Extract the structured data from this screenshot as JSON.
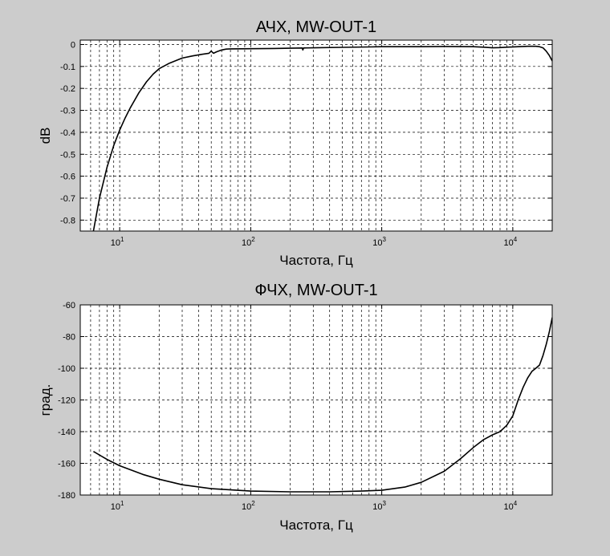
{
  "chart_data": [
    {
      "type": "line",
      "title": "АЧХ, MW-OUT-1",
      "xlabel": "Частота, Гц",
      "ylabel": "dB",
      "xscale": "log",
      "xlim": [
        5,
        20000
      ],
      "ylim": [
        -0.85,
        0.02
      ],
      "grid": true,
      "xticks": [
        {
          "value": 10,
          "base": "10",
          "exp": "1"
        },
        {
          "value": 100,
          "base": "10",
          "exp": "2"
        },
        {
          "value": 1000,
          "base": "10",
          "exp": "3"
        },
        {
          "value": 10000,
          "base": "10",
          "exp": "4"
        }
      ],
      "yticks": [
        {
          "value": 0,
          "label": "0"
        },
        {
          "value": -0.1,
          "label": "-0.1"
        },
        {
          "value": -0.2,
          "label": "-0.2"
        },
        {
          "value": -0.3,
          "label": "-0.3"
        },
        {
          "value": -0.4,
          "label": "-0.4"
        },
        {
          "value": -0.5,
          "label": "-0.5"
        },
        {
          "value": -0.6,
          "label": "-0.6"
        },
        {
          "value": -0.7,
          "label": "-0.7"
        },
        {
          "value": -0.8,
          "label": "-0.8"
        }
      ],
      "series": [
        {
          "points": [
            [
              6.3,
              -0.85
            ],
            [
              7,
              -0.7
            ],
            [
              8,
              -0.56
            ],
            [
              9,
              -0.46
            ],
            [
              10,
              -0.39
            ],
            [
              11,
              -0.335
            ],
            [
              12,
              -0.29
            ],
            [
              14,
              -0.22
            ],
            [
              16,
              -0.17
            ],
            [
              18,
              -0.135
            ],
            [
              20,
              -0.11
            ],
            [
              24,
              -0.085
            ],
            [
              30,
              -0.062
            ],
            [
              36,
              -0.052
            ],
            [
              42,
              -0.045
            ],
            [
              48,
              -0.04
            ],
            [
              50,
              -0.03
            ],
            [
              52,
              -0.04
            ],
            [
              55,
              -0.033
            ],
            [
              60,
              -0.025
            ],
            [
              65,
              -0.021
            ],
            [
              70,
              -0.02
            ],
            [
              100,
              -0.019
            ],
            [
              150,
              -0.018
            ],
            [
              200,
              -0.017
            ],
            [
              247,
              -0.016
            ],
            [
              250,
              -0.025
            ],
            [
              253,
              -0.016
            ],
            [
              300,
              -0.015
            ],
            [
              500,
              -0.013
            ],
            [
              800,
              -0.011
            ],
            [
              1000,
              -0.01
            ],
            [
              2000,
              -0.01
            ],
            [
              3000,
              -0.009
            ],
            [
              5000,
              -0.01
            ],
            [
              6000,
              -0.012
            ],
            [
              7000,
              -0.015
            ],
            [
              8000,
              -0.014
            ],
            [
              9000,
              -0.012
            ],
            [
              11000,
              -0.01
            ],
            [
              13000,
              -0.008
            ],
            [
              15000,
              -0.008
            ],
            [
              16000,
              -0.01
            ],
            [
              17000,
              -0.015
            ],
            [
              18000,
              -0.03
            ],
            [
              19000,
              -0.05
            ],
            [
              20000,
              -0.075
            ]
          ]
        }
      ]
    },
    {
      "type": "line",
      "title": "ФЧХ, MW-OUT-1",
      "xlabel": "Частота, Гц",
      "ylabel": "град.",
      "xscale": "log",
      "xlim": [
        5,
        20000
      ],
      "ylim": [
        -180,
        -60
      ],
      "grid": true,
      "xticks": [
        {
          "value": 10,
          "base": "10",
          "exp": "1"
        },
        {
          "value": 100,
          "base": "10",
          "exp": "2"
        },
        {
          "value": 1000,
          "base": "10",
          "exp": "3"
        },
        {
          "value": 10000,
          "base": "10",
          "exp": "4"
        }
      ],
      "yticks": [
        {
          "value": -60,
          "label": "-60"
        },
        {
          "value": -80,
          "label": "-80"
        },
        {
          "value": -100,
          "label": "-100"
        },
        {
          "value": -120,
          "label": "-120"
        },
        {
          "value": -140,
          "label": "-140"
        },
        {
          "value": -160,
          "label": "-160"
        },
        {
          "value": -180,
          "label": "-180"
        }
      ],
      "series": [
        {
          "points": [
            [
              6.3,
              -152.5
            ],
            [
              8,
              -157.5
            ],
            [
              10,
              -161.5
            ],
            [
              15,
              -167
            ],
            [
              20,
              -170
            ],
            [
              30,
              -173.5
            ],
            [
              50,
              -176
            ],
            [
              100,
              -177.5
            ],
            [
              200,
              -178
            ],
            [
              400,
              -178
            ],
            [
              700,
              -177.5
            ],
            [
              1000,
              -177
            ],
            [
              1500,
              -175
            ],
            [
              2000,
              -172
            ],
            [
              3000,
              -165
            ],
            [
              4000,
              -157
            ],
            [
              5000,
              -150
            ],
            [
              6000,
              -145
            ],
            [
              7000,
              -142
            ],
            [
              8000,
              -140
            ],
            [
              9000,
              -136
            ],
            [
              10000,
              -130
            ],
            [
              11000,
              -120
            ],
            [
              12000,
              -112
            ],
            [
              13000,
              -106
            ],
            [
              14000,
              -102
            ],
            [
              15000,
              -100
            ],
            [
              16000,
              -98
            ],
            [
              17000,
              -92
            ],
            [
              18000,
              -85
            ],
            [
              19000,
              -77
            ],
            [
              20000,
              -68
            ]
          ]
        }
      ]
    }
  ]
}
